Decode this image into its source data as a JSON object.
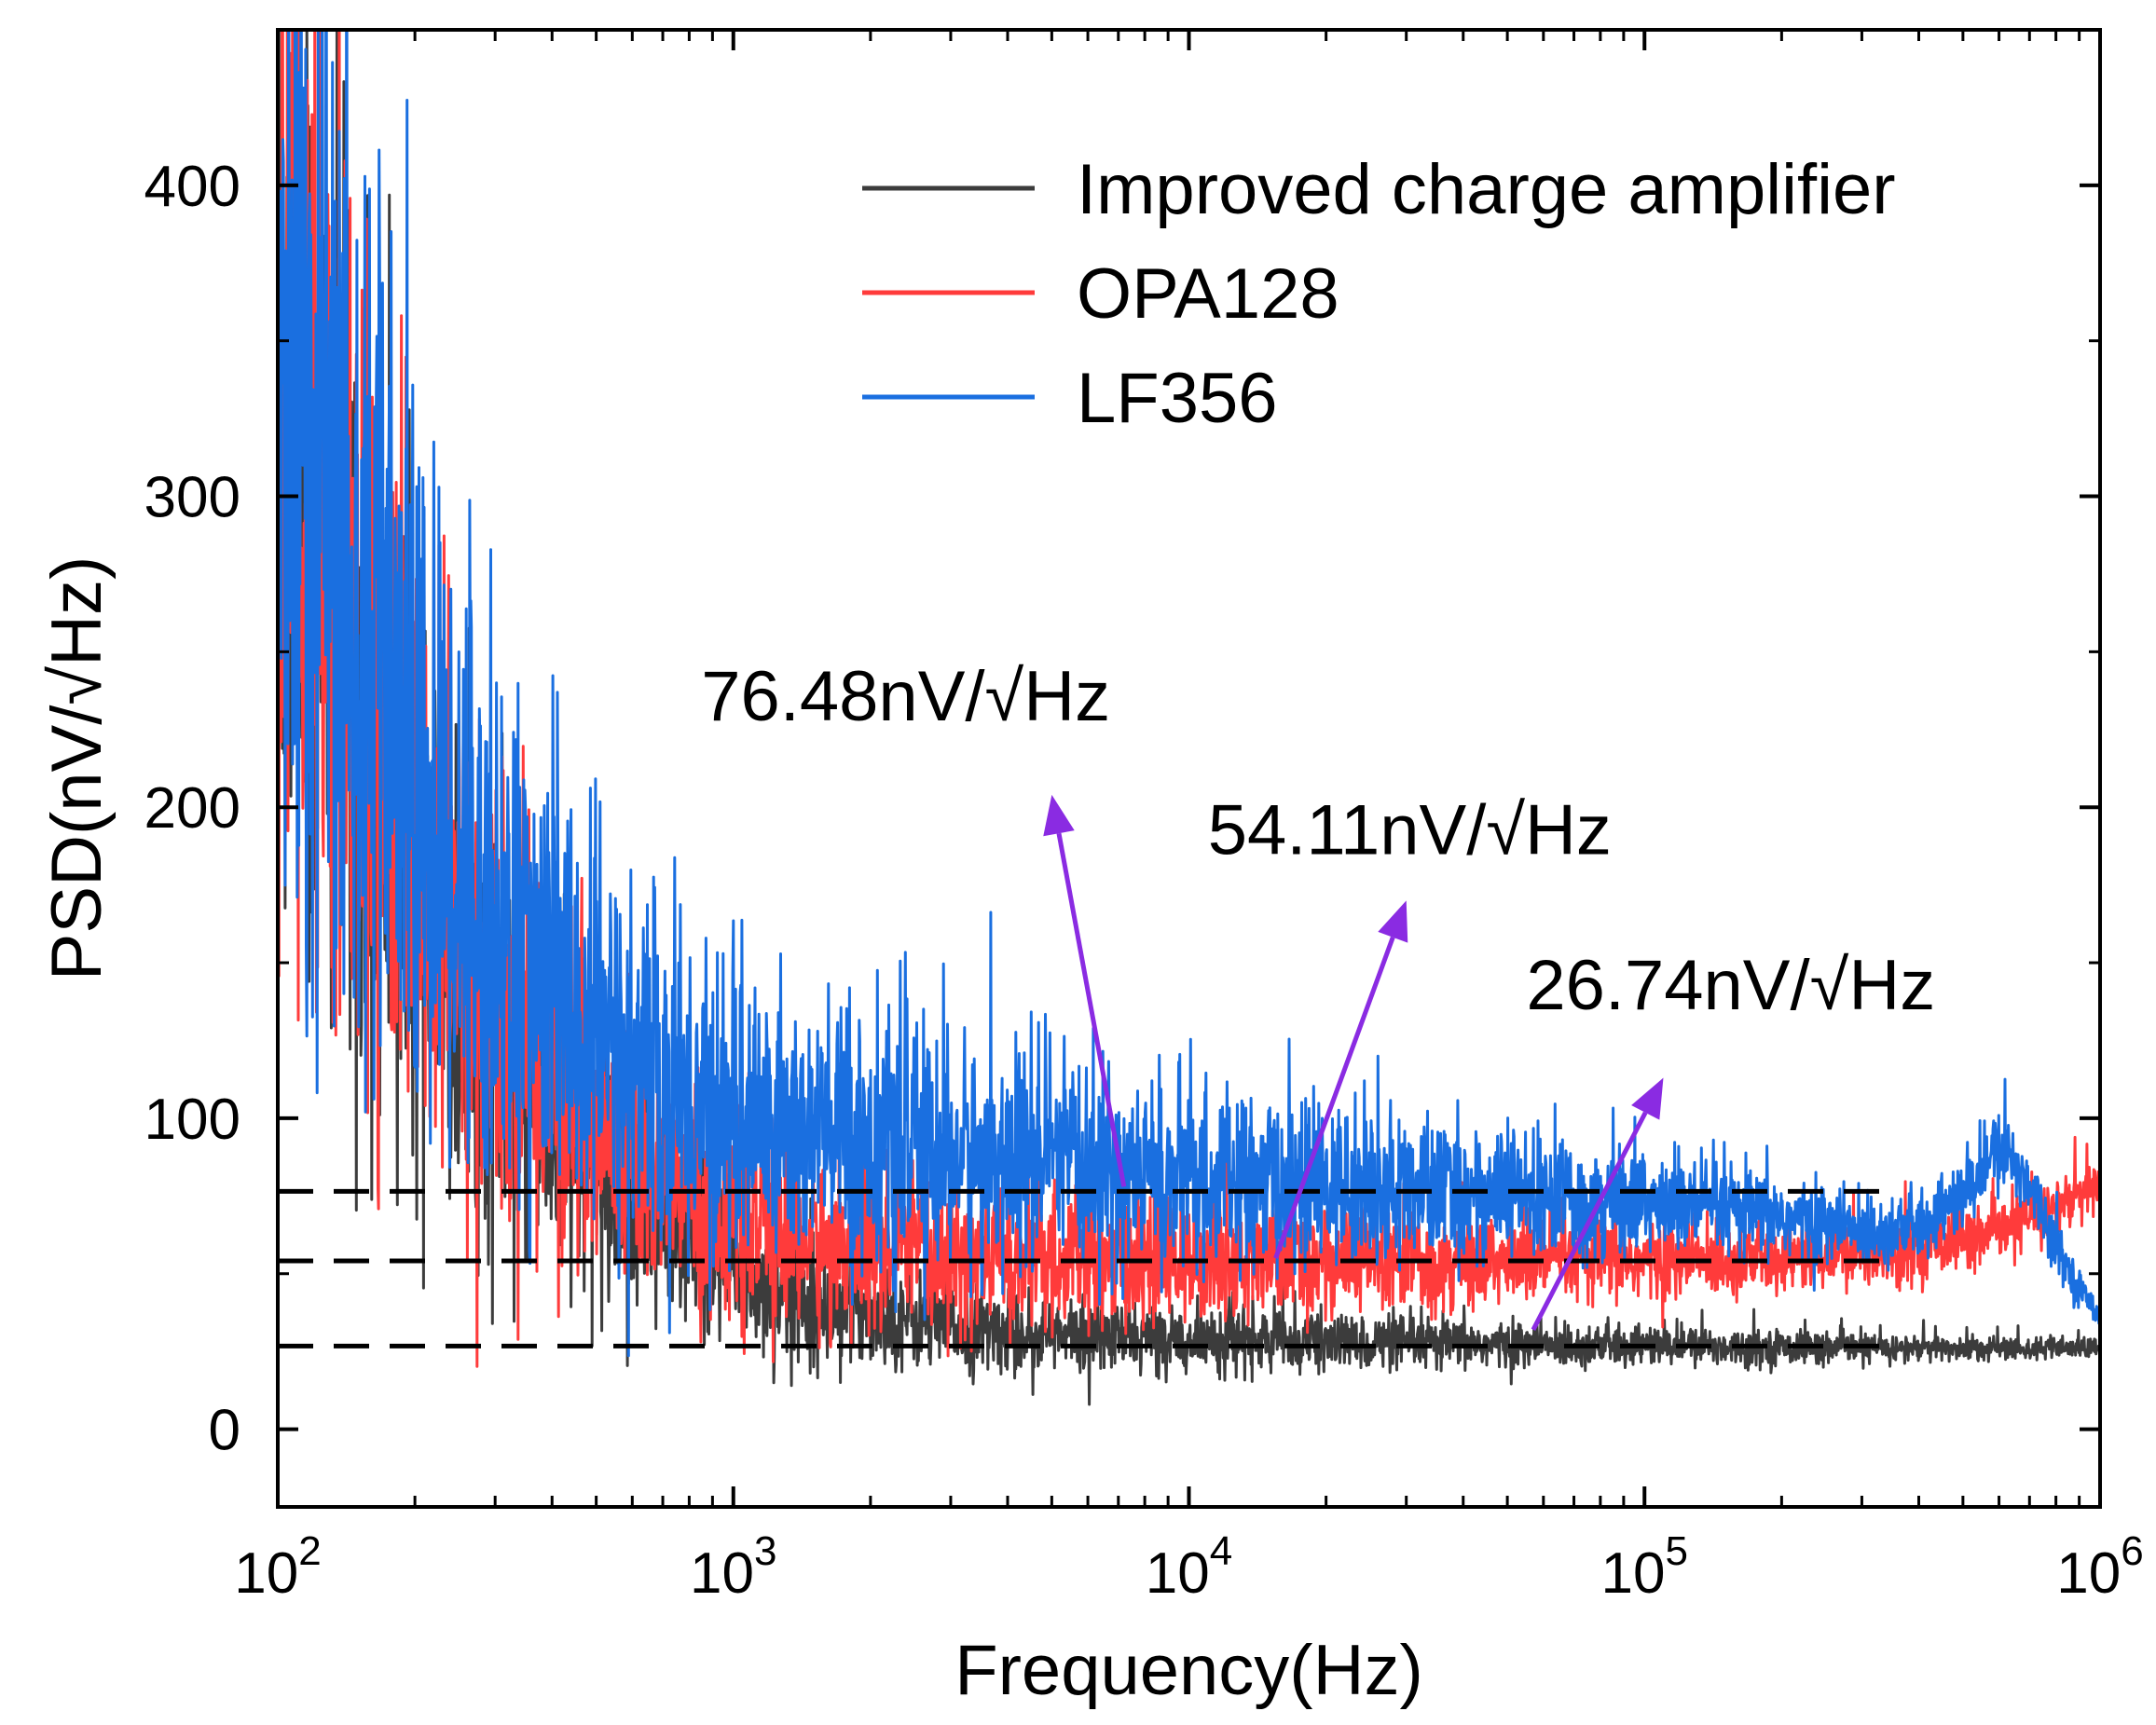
{
  "chart_data": {
    "type": "line",
    "title": "",
    "xlabel": "Frequency(Hz)",
    "ylabel": "PSD(nV/√Hz)",
    "x_scale": "log",
    "xlim": [
      100,
      1000000
    ],
    "ylim": [
      -25,
      450
    ],
    "x_ticks": [
      {
        "value": 100,
        "base": "10",
        "exp": "2"
      },
      {
        "value": 1000,
        "base": "10",
        "exp": "3"
      },
      {
        "value": 10000,
        "base": "10",
        "exp": "4"
      },
      {
        "value": 100000,
        "base": "10",
        "exp": "5"
      },
      {
        "value": 1000000,
        "base": "10",
        "exp": "6"
      }
    ],
    "y_ticks": [
      {
        "value": 0,
        "label": "0"
      },
      {
        "value": 100,
        "label": "100"
      },
      {
        "value": 200,
        "label": "200"
      },
      {
        "value": 300,
        "label": "300"
      },
      {
        "value": 400,
        "label": "400"
      }
    ],
    "grid": false,
    "legend_position": "top-right",
    "series": [
      {
        "name": "Improved charge amplifier",
        "color": "#3c3c3c",
        "noise_floor": 26.74,
        "points": [
          [
            100,
            330
          ],
          [
            150,
            240
          ],
          [
            200,
            170
          ],
          [
            300,
            120
          ],
          [
            500,
            85
          ],
          [
            700,
            65
          ],
          [
            1000,
            50
          ],
          [
            1500,
            42
          ],
          [
            2000,
            38
          ],
          [
            3000,
            33
          ],
          [
            5000,
            30
          ],
          [
            10000,
            29
          ],
          [
            20000,
            28
          ],
          [
            50000,
            27
          ],
          [
            100000,
            27
          ],
          [
            300000,
            26
          ],
          [
            1000000,
            26
          ]
        ]
      },
      {
        "name": "OPA128",
        "color": "#ff3b3b",
        "noise_floor": 54.11,
        "points": [
          [
            100,
            340
          ],
          [
            150,
            250
          ],
          [
            200,
            185
          ],
          [
            300,
            135
          ],
          [
            500,
            100
          ],
          [
            700,
            80
          ],
          [
            1000,
            68
          ],
          [
            1500,
            60
          ],
          [
            2000,
            57
          ],
          [
            3000,
            55
          ],
          [
            5000,
            54
          ],
          [
            10000,
            54
          ],
          [
            30000,
            54
          ],
          [
            100000,
            54
          ],
          [
            300000,
            56
          ],
          [
            600000,
            63
          ],
          [
            1000000,
            78
          ]
        ]
      },
      {
        "name": "LF356",
        "color": "#1a6fe0",
        "noise_floor": 76.48,
        "points": [
          [
            100,
            350
          ],
          [
            150,
            265
          ],
          [
            200,
            205
          ],
          [
            300,
            160
          ],
          [
            500,
            125
          ],
          [
            700,
            110
          ],
          [
            1000,
            100
          ],
          [
            1500,
            95
          ],
          [
            2000,
            92
          ],
          [
            3000,
            88
          ],
          [
            5000,
            85
          ],
          [
            10000,
            80
          ],
          [
            30000,
            77
          ],
          [
            100000,
            73
          ],
          [
            200000,
            68
          ],
          [
            300000,
            64
          ],
          [
            400000,
            65
          ],
          [
            500000,
            75
          ],
          [
            600000,
            90
          ],
          [
            700000,
            80
          ],
          [
            800000,
            60
          ],
          [
            900000,
            45
          ],
          [
            1000000,
            37
          ]
        ]
      }
    ],
    "dashed_lines": [
      {
        "y": 76.48,
        "x_start": 100,
        "x_end": 350000
      },
      {
        "y": 54.11,
        "x_start": 100,
        "x_end": 350000
      },
      {
        "y": 26.74,
        "x_start": 100,
        "x_end": 350000
      }
    ],
    "annotations": [
      {
        "text": "76.48nV/√Hz",
        "label_x": 850,
        "label_y": 228,
        "arrow_from": [
          7200,
          78
        ],
        "arrow_to": [
          5000,
          204
        ],
        "color": "#8a2be2"
      },
      {
        "text": "54.11nV/√Hz",
        "label_x": 11000,
        "label_y": 185,
        "arrow_from": [
          15500,
          55
        ],
        "arrow_to": [
          30000,
          170
        ],
        "color": "#8a2be2"
      },
      {
        "text": "26.74nV/√Hz",
        "label_x": 55000,
        "label_y": 135,
        "arrow_from": [
          57000,
          32
        ],
        "arrow_to": [
          110000,
          113
        ],
        "color": "#8a2be2"
      }
    ]
  }
}
